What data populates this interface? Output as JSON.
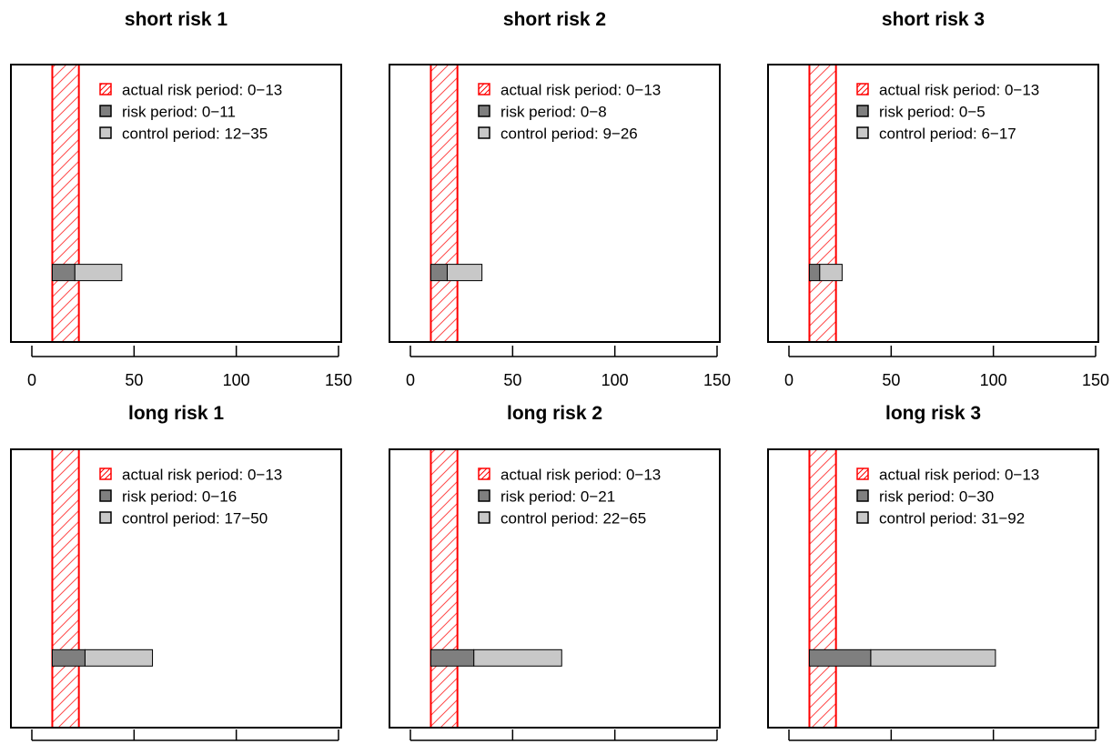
{
  "colors": {
    "actual_risk": "#ff0000",
    "risk_fill": "#7f7f7f",
    "control_fill": "#c8c8c8",
    "frame": "#000000"
  },
  "chart_data": [
    {
      "type": "bar",
      "title": "short risk 1",
      "xlim": [
        0,
        150
      ],
      "xticks": [
        "0",
        "50",
        "100",
        "150"
      ],
      "actual_risk_period": {
        "x": [
          10,
          23
        ],
        "label": "actual risk period: 0−13"
      },
      "risk_period": {
        "x": [
          10,
          21
        ],
        "label": "risk period: 0−11"
      },
      "control_period": {
        "x": [
          21,
          44
        ],
        "label": "control period: 12−35"
      },
      "legend": "top-right"
    },
    {
      "type": "bar",
      "title": "short risk 2",
      "xlim": [
        0,
        150
      ],
      "xticks": [
        "0",
        "50",
        "100",
        "150"
      ],
      "actual_risk_period": {
        "x": [
          10,
          23
        ],
        "label": "actual risk period: 0−13"
      },
      "risk_period": {
        "x": [
          10,
          18
        ],
        "label": "risk period: 0−8"
      },
      "control_period": {
        "x": [
          18,
          35
        ],
        "label": "control period: 9−26"
      },
      "legend": "top-right"
    },
    {
      "type": "bar",
      "title": "short risk 3",
      "xlim": [
        0,
        150
      ],
      "xticks": [
        "0",
        "50",
        "100",
        "150"
      ],
      "actual_risk_period": {
        "x": [
          10,
          23
        ],
        "label": "actual risk period: 0−13"
      },
      "risk_period": {
        "x": [
          10,
          15
        ],
        "label": "risk period: 0−5"
      },
      "control_period": {
        "x": [
          15,
          26
        ],
        "label": "control period: 6−17"
      },
      "legend": "top-right"
    },
    {
      "type": "bar",
      "title": "long risk 1",
      "xlim": [
        0,
        150
      ],
      "xticks": [],
      "actual_risk_period": {
        "x": [
          10,
          23
        ],
        "label": "actual risk period: 0−13"
      },
      "risk_period": {
        "x": [
          10,
          26
        ],
        "label": "risk period: 0−16"
      },
      "control_period": {
        "x": [
          26,
          59
        ],
        "label": "control period: 17−50"
      },
      "legend": "top-right"
    },
    {
      "type": "bar",
      "title": "long risk 2",
      "xlim": [
        0,
        150
      ],
      "xticks": [],
      "actual_risk_period": {
        "x": [
          10,
          23
        ],
        "label": "actual risk period: 0−13"
      },
      "risk_period": {
        "x": [
          10,
          31
        ],
        "label": "risk period: 0−21"
      },
      "control_period": {
        "x": [
          31,
          74
        ],
        "label": "control period: 22−65"
      },
      "legend": "top-right"
    },
    {
      "type": "bar",
      "title": "long risk 3",
      "xlim": [
        0,
        150
      ],
      "xticks": [],
      "actual_risk_period": {
        "x": [
          10,
          23
        ],
        "label": "actual risk period: 0−13"
      },
      "risk_period": {
        "x": [
          10,
          40
        ],
        "label": "risk period: 0−30"
      },
      "control_period": {
        "x": [
          40,
          101
        ],
        "label": "control period: 31−92"
      },
      "legend": "top-right"
    }
  ]
}
